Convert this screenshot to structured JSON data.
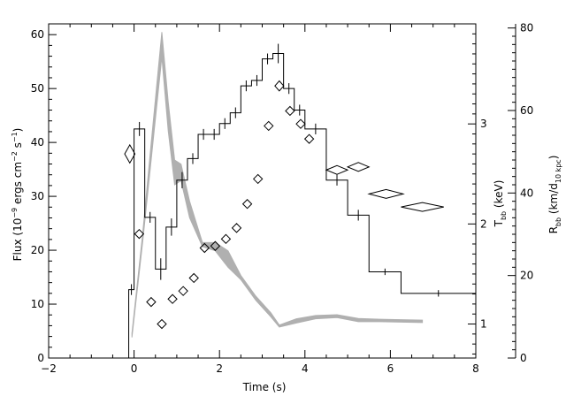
{
  "chart_data": {
    "type": "line",
    "xlabel": "Time (s)",
    "ylabel": "Flux (10⁻⁹ ergs cm⁻² s⁻¹)",
    "ylabel_parts": [
      "Flux (10",
      "−9",
      " ergs cm",
      "−2",
      " s",
      "−1",
      ")"
    ],
    "y2label_parts": [
      "T",
      "bb",
      " (keV)"
    ],
    "y3label_parts": [
      "R",
      "bb",
      " (km/d",
      "10 kpc",
      ")"
    ],
    "xlim": [
      -2,
      8
    ],
    "ylim": [
      0,
      62
    ],
    "y2lim": [
      0.66,
      4.0
    ],
    "y3lim": [
      0,
      81
    ],
    "x_ticks": [
      -2,
      0,
      2,
      4,
      6,
      8
    ],
    "y_ticks": [
      0,
      10,
      20,
      30,
      40,
      50,
      60
    ],
    "y2_ticks": [
      1,
      2,
      3
    ],
    "y3_ticks": [
      0,
      20,
      40,
      60,
      80
    ],
    "flux_steps": [
      {
        "x0": -0.125,
        "x1": 0.0,
        "y": 12.7,
        "err": 1.0
      },
      {
        "x0": 0.0,
        "x1": 0.25,
        "y": 42.5,
        "err": 1.3
      },
      {
        "x0": 0.25,
        "x1": 0.5,
        "y": 26.1,
        "err": 1.0
      },
      {
        "x0": 0.5,
        "x1": 0.75,
        "y": 16.5,
        "err": 2.0
      },
      {
        "x0": 0.75,
        "x1": 1.0,
        "y": 24.3,
        "err": 1.6
      },
      {
        "x0": 1.0,
        "x1": 1.25,
        "y": 33.0,
        "err": 1.5
      },
      {
        "x0": 1.25,
        "x1": 1.5,
        "y": 37.0,
        "err": 1.0
      },
      {
        "x0": 1.5,
        "x1": 1.75,
        "y": 41.5,
        "err": 1.0
      },
      {
        "x0": 1.75,
        "x1": 2.0,
        "y": 41.5,
        "err": 1.0
      },
      {
        "x0": 2.0,
        "x1": 2.25,
        "y": 43.5,
        "err": 1.0
      },
      {
        "x0": 2.25,
        "x1": 2.5,
        "y": 45.5,
        "err": 1.0
      },
      {
        "x0": 2.5,
        "x1": 2.75,
        "y": 50.5,
        "err": 1.0
      },
      {
        "x0": 2.75,
        "x1": 3.0,
        "y": 51.5,
        "err": 1.0
      },
      {
        "x0": 3.0,
        "x1": 3.25,
        "y": 55.5,
        "err": 1.0
      },
      {
        "x0": 3.25,
        "x1": 3.5,
        "y": 56.5,
        "err": 1.8
      },
      {
        "x0": 3.5,
        "x1": 3.75,
        "y": 50.0,
        "err": 1.0
      },
      {
        "x0": 3.75,
        "x1": 4.0,
        "y": 46.0,
        "err": 1.0
      },
      {
        "x0": 4.0,
        "x1": 4.5,
        "y": 42.5,
        "err": 1.0
      },
      {
        "x0": 4.5,
        "x1": 5.0,
        "y": 33.0,
        "err": 1.0
      },
      {
        "x0": 5.0,
        "x1": 5.5,
        "y": 26.5,
        "err": 1.0
      },
      {
        "x0": 5.5,
        "x1": 6.25,
        "y": 16.0,
        "err": 0.6
      },
      {
        "x0": 6.25,
        "x1": 8.0,
        "y": 12.0,
        "err": 0.6
      }
    ],
    "temperature_keV": [
      {
        "t": -0.1,
        "T": 2.7,
        "dt": 0.12,
        "dT": 0.09
      },
      {
        "t": 0.12,
        "T": 1.9,
        "dt": 0.1,
        "dT": 0.03
      },
      {
        "t": 0.4,
        "T": 1.22,
        "dt": 0.1,
        "dT": 0.03
      },
      {
        "t": 0.65,
        "T": 1.0,
        "dt": 0.1,
        "dT": 0.03
      },
      {
        "t": 0.9,
        "T": 1.25,
        "dt": 0.1,
        "dT": 0.03
      },
      {
        "t": 1.15,
        "T": 1.33,
        "dt": 0.1,
        "dT": 0.03
      },
      {
        "t": 1.4,
        "T": 1.46,
        "dt": 0.1,
        "dT": 0.03
      },
      {
        "t": 1.65,
        "T": 1.76,
        "dt": 0.1,
        "dT": 0.03
      },
      {
        "t": 1.9,
        "T": 1.78,
        "dt": 0.1,
        "dT": 0.03
      },
      {
        "t": 2.15,
        "T": 1.85,
        "dt": 0.1,
        "dT": 0.03
      },
      {
        "t": 2.4,
        "T": 1.96,
        "dt": 0.1,
        "dT": 0.03
      },
      {
        "t": 2.65,
        "T": 2.2,
        "dt": 0.1,
        "dT": 0.03
      },
      {
        "t": 2.9,
        "T": 2.45,
        "dt": 0.1,
        "dT": 0.03
      },
      {
        "t": 3.15,
        "T": 2.98,
        "dt": 0.1,
        "dT": 0.04
      },
      {
        "t": 3.4,
        "T": 3.38,
        "dt": 0.1,
        "dT": 0.05
      },
      {
        "t": 3.65,
        "T": 3.13,
        "dt": 0.1,
        "dT": 0.04
      },
      {
        "t": 3.9,
        "T": 3.0,
        "dt": 0.1,
        "dT": 0.04
      },
      {
        "t": 4.1,
        "T": 2.85,
        "dt": 0.1,
        "dT": 0.04
      },
      {
        "t": 4.75,
        "T": 2.54,
        "dt": 0.25,
        "dT": 0.03
      },
      {
        "t": 5.25,
        "T": 2.57,
        "dt": 0.25,
        "dT": 0.03
      },
      {
        "t": 5.9,
        "T": 2.3,
        "dt": 0.4,
        "dT": 0.02
      },
      {
        "t": 6.75,
        "T": 2.17,
        "dt": 0.5,
        "dT": 0.02
      }
    ],
    "radius_band": [
      {
        "t": -0.05,
        "lo": 5,
        "hi": 6
      },
      {
        "t": 0.2,
        "lo": 28,
        "hi": 30
      },
      {
        "t": 0.4,
        "lo": 48,
        "hi": 52
      },
      {
        "t": 0.65,
        "lo": 73,
        "hi": 79
      },
      {
        "t": 0.8,
        "lo": 55,
        "hi": 62
      },
      {
        "t": 0.95,
        "lo": 42,
        "hi": 48
      },
      {
        "t": 1.1,
        "lo": 43,
        "hi": 47
      },
      {
        "t": 1.3,
        "lo": 34,
        "hi": 38
      },
      {
        "t": 1.6,
        "lo": 27,
        "hi": 28
      },
      {
        "t": 1.9,
        "lo": 26,
        "hi": 28
      },
      {
        "t": 2.2,
        "lo": 22,
        "hi": 26
      },
      {
        "t": 2.5,
        "lo": 19,
        "hi": 20
      },
      {
        "t": 2.85,
        "lo": 14,
        "hi": 15
      },
      {
        "t": 3.2,
        "lo": 10,
        "hi": 11
      },
      {
        "t": 3.4,
        "lo": 7.5,
        "hi": 8
      },
      {
        "t": 3.8,
        "lo": 8.5,
        "hi": 9.5
      },
      {
        "t": 4.25,
        "lo": 9.5,
        "hi": 10.3
      },
      {
        "t": 4.75,
        "lo": 9.8,
        "hi": 10.5
      },
      {
        "t": 5.25,
        "lo": 8.8,
        "hi": 9.6
      },
      {
        "t": 5.75,
        "lo": 8.8,
        "hi": 9.4
      },
      {
        "t": 6.25,
        "lo": 8.7,
        "hi": 9.3
      },
      {
        "t": 6.75,
        "lo": 8.6,
        "hi": 9.2
      }
    ],
    "grid": false
  }
}
